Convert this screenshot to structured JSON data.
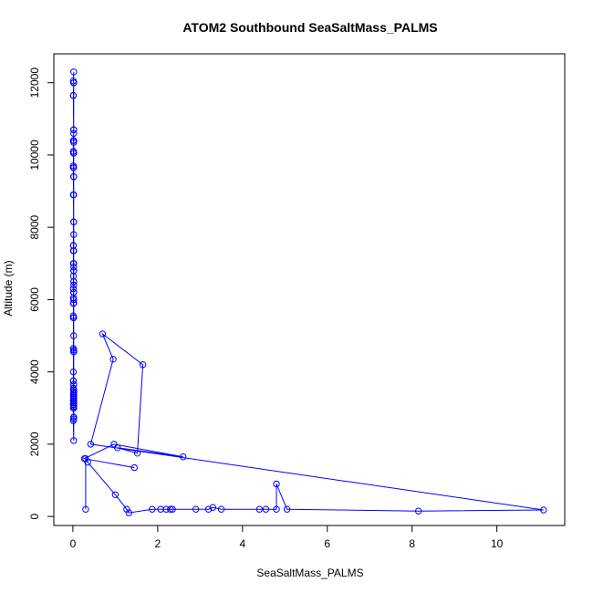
{
  "chart_data": {
    "type": "line",
    "title": "ATOM2 Southbound SeaSaltMass_PALMS",
    "xlabel": "SeaSaltMass_PALMS",
    "ylabel": "Altitude (m)",
    "xlim": [
      -0.45,
      11.6
    ],
    "ylim": [
      -250,
      12800
    ],
    "xticks": [
      0,
      2,
      4,
      6,
      8,
      10
    ],
    "yticks": [
      0,
      2000,
      4000,
      6000,
      8000,
      10000,
      12000
    ],
    "series": [
      {
        "color": "#0000ff",
        "x": [
          0.02,
          0.01,
          0.02,
          0.01,
          0.02,
          0.02,
          0.01,
          0.02,
          0.01,
          0.02,
          0.01,
          0.02,
          0.02,
          0.01,
          0.02,
          0.02,
          0.01,
          0.02,
          0.01,
          0.02,
          0.02,
          0.01,
          0.02,
          0.02,
          0.01,
          0.02,
          0.01,
          0.02,
          0.02,
          0.01,
          0.02,
          0.01,
          0.02,
          0.02,
          0.01,
          0.02,
          0.01,
          0.02,
          0.02,
          0.01,
          0.02,
          0.02,
          0.01,
          0.02,
          0.01,
          0.02,
          0.01,
          0.02,
          0.02,
          0.01,
          0.02,
          0.02,
          0.01,
          0.02,
          0.01,
          0.02,
          0.02,
          0.01,
          0.02,
          0.02,
          0.02,
          0.01,
          0.02,
          0.01,
          0.02,
          0.02,
          0.01,
          0.02,
          0.02,
          0.01,
          0.02,
          0.01,
          0.02,
          0.02,
          0.01,
          0.02,
          0.02,
          0.01,
          0.02,
          0.02,
          0.02,
          0.02,
          0.02,
          0.02,
          0.02,
          0.02,
          0.02,
          0.02,
          0.02,
          0.02,
          0.02,
          0.02,
          0.02,
          0.02,
          0.02,
          0.02,
          0.02,
          0.02,
          0.02,
          0.02,
          0.02,
          0.02,
          0.02,
          0.02,
          0.02,
          0.02,
          0.02,
          0.02,
          0.02,
          0.02,
          0.02,
          0.02,
          0.02,
          0.02,
          0.02,
          0.02,
          0.02,
          0.02,
          0.02,
          0.02,
          0.02,
          0.02,
          0.02,
          0.02
        ],
        "y": [
          12300,
          12050,
          12000,
          11650,
          10700,
          10600,
          10400,
          10350,
          10100,
          10050,
          9700,
          9650,
          9400,
          8900,
          8150,
          7800,
          7500,
          7350,
          7000,
          6900,
          6800,
          6650,
          6500,
          6400,
          6300,
          6200,
          6050,
          6000,
          5900,
          5550,
          5500,
          4650,
          4600,
          4550,
          3750,
          3650,
          3550,
          3450,
          3400,
          3350,
          3300,
          3250,
          3200,
          3150,
          3100,
          3050,
          3000,
          2750,
          2700,
          2650,
          2100,
          12000,
          11650,
          10400,
          10100,
          9400,
          8900,
          7500,
          7000,
          6500,
          6000,
          5500,
          4600,
          4000,
          3500,
          3300,
          3100,
          10700,
          10050,
          9650,
          8150,
          7350,
          6800,
          6200,
          5900,
          5000,
          4550,
          3750,
          3450,
          3200,
          3050,
          2750,
          3650,
          3400,
          3300,
          3250,
          3150,
          3300,
          3100,
          3400,
          3200,
          3350,
          3500,
          3050,
          3150,
          3000,
          3100,
          3300,
          3200,
          3100,
          3250,
          3400,
          3050,
          3150,
          3200,
          3300,
          3000,
          3100,
          3200,
          3400,
          3250,
          3050,
          3300,
          3150,
          3200,
          3100,
          3000,
          3250,
          3050,
          3400,
          3200,
          3150,
          3300,
          3100
        ]
      },
      {
        "color": "#0000ff",
        "x": [
          0.3,
          0.3,
          0.35,
          1.0,
          1.27,
          1.32,
          1.87,
          2.07,
          2.2,
          2.3,
          2.35,
          2.9,
          3.2,
          3.3,
          3.5,
          4.4,
          4.55,
          4.8,
          4.8,
          5.05,
          8.15,
          11.1,
          0.42,
          0.95,
          0.7,
          1.65,
          1.52,
          1.05,
          2.6,
          0.97,
          0.27,
          1.45
        ],
        "y": [
          200,
          1600,
          1500,
          600,
          200,
          100,
          200,
          200,
          200,
          200,
          200,
          200,
          200,
          250,
          200,
          200,
          200,
          200,
          900,
          200,
          150,
          180,
          2000,
          4350,
          5050,
          4200,
          1750,
          1900,
          1650,
          2000,
          1600,
          1350
        ]
      }
    ]
  }
}
